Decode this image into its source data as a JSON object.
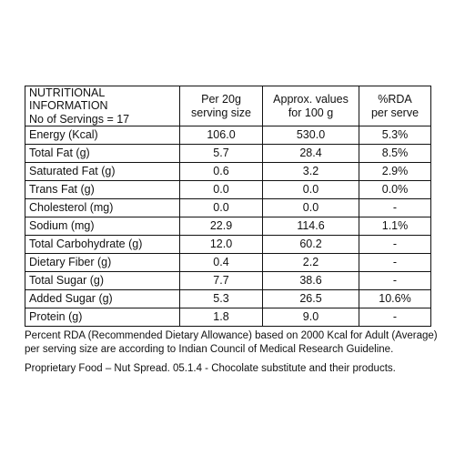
{
  "header": {
    "info_line1": "NUTRITIONAL INFORMATION",
    "info_line2": "No of Servings = 17",
    "col2_line1": "Per 20g",
    "col2_line2": "serving size",
    "col3_line1": "Approx. values",
    "col3_line2": "for 100 g",
    "col4_line1": "%RDA",
    "col4_line2": "per serve"
  },
  "rows": [
    {
      "name": "Energy (Kcal)",
      "per_serving": "106.0",
      "per_100g": "530.0",
      "rda": "5.3%"
    },
    {
      "name": "Total Fat (g)",
      "per_serving": "5.7",
      "per_100g": "28.4",
      "rda": "8.5%"
    },
    {
      "name": "Saturated Fat (g)",
      "per_serving": "0.6",
      "per_100g": "3.2",
      "rda": "2.9%"
    },
    {
      "name": "Trans Fat (g)",
      "per_serving": "0.0",
      "per_100g": "0.0",
      "rda": "0.0%"
    },
    {
      "name": "Cholesterol (mg)",
      "per_serving": "0.0",
      "per_100g": "0.0",
      "rda": "-"
    },
    {
      "name": "Sodium (mg)",
      "per_serving": "22.9",
      "per_100g": "114.6",
      "rda": "1.1%"
    },
    {
      "name": "Total Carbohydrate (g)",
      "per_serving": "12.0",
      "per_100g": "60.2",
      "rda": "-"
    },
    {
      "name": "Dietary Fiber (g)",
      "per_serving": "0.4",
      "per_100g": "2.2",
      "rda": "-"
    },
    {
      "name": "Total Sugar (g)",
      "per_serving": "7.7",
      "per_100g": "38.6",
      "rda": "-"
    },
    {
      "name": "Added Sugar (g)",
      "per_serving": "5.3",
      "per_100g": "26.5",
      "rda": "10.6%"
    },
    {
      "name": "Protein (g)",
      "per_serving": "1.8",
      "per_100g": "9.0",
      "rda": "-"
    }
  ],
  "footnote_line1": "Percent RDA (Recommended Dietary Allowance) based on 2000 Kcal for Adult (Average)",
  "footnote_line2": "per serving size are according to Indian Council of Medical Research Guideline.",
  "category_note": "Proprietary Food – Nut Spread. 05.1.4 - Chocolate substitute and their products."
}
